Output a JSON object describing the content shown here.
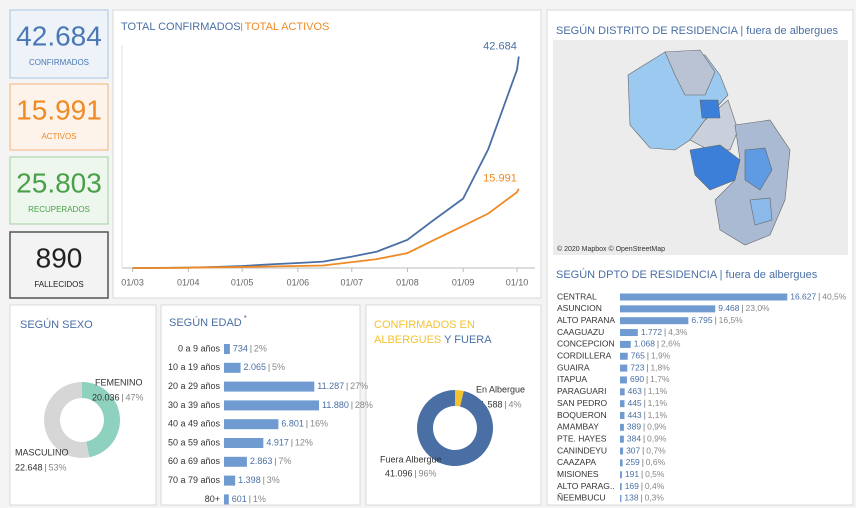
{
  "kpis": [
    {
      "value": "42.684",
      "label": "CONFIRMADOS",
      "color": "#4a78b5",
      "bg": "#eef3fa",
      "border": "#a9c4e4"
    },
    {
      "value": "15.991",
      "label": "ACTIVOS",
      "color": "#f08a24",
      "bg": "#fdf3ea",
      "border": "#f3b57a"
    },
    {
      "value": "25.803",
      "label": "RECUPERADOS",
      "color": "#4aa04a",
      "bg": "#eef7ee",
      "border": "#9fd09f"
    },
    {
      "value": "890",
      "label": "FALLECIDOS",
      "color": "#222222",
      "bg": "#f3f3f3",
      "border": "#555555"
    }
  ],
  "map": {
    "title": "SEGÚN DISTRITO DE RESIDENCIA | fuera de albergues",
    "attribution": "© 2020 Mapbox © OpenStreetMap"
  },
  "chart_data": [
    {
      "type": "line",
      "x": [
        "01/03",
        "15/03",
        "01/04",
        "15/04",
        "01/05",
        "15/05",
        "01/06",
        "15/06",
        "01/07",
        "15/07",
        "01/08",
        "15/08",
        "01/09",
        "15/09",
        "01/10",
        "02/10"
      ],
      "xlim": [
        "23/02",
        "11/10"
      ],
      "xticks": [
        "01/03",
        "01/04",
        "01/05",
        "01/06",
        "01/07",
        "01/08",
        "01/09",
        "01/10"
      ],
      "ylim": [
        0,
        45000
      ],
      "series": [
        {
          "name": "TOTAL CONFIRMADOS",
          "color": "#4a6fa5",
          "values": [
            0,
            11,
            70,
            200,
            400,
            700,
            1000,
            1300,
            2300,
            3300,
            5700,
            9500,
            14000,
            24000,
            40000,
            42684
          ],
          "value_labels": [
            null,
            null,
            null,
            null,
            null,
            null,
            null,
            null,
            null,
            null,
            null,
            null,
            null,
            null,
            null,
            "42.684"
          ]
        },
        {
          "name": "TOTAL ACTIVOS",
          "color": "#f08a24",
          "values": [
            0,
            10,
            60,
            150,
            200,
            300,
            400,
            500,
            1200,
            1800,
            3000,
            5500,
            8500,
            11000,
            15300,
            15991
          ],
          "value_labels": [
            null,
            null,
            null,
            null,
            null,
            null,
            null,
            null,
            null,
            null,
            null,
            null,
            null,
            null,
            null,
            "15.991"
          ]
        }
      ]
    },
    {
      "type": "donut",
      "title": "SEGÚN SEXO",
      "categories": [
        "FEMENINO",
        "MASCULINO"
      ],
      "values": [
        20036,
        22648
      ],
      "value_labels": [
        "20.036",
        "22.648"
      ],
      "percent_labels": [
        "47%",
        "53%"
      ],
      "colors": [
        "#8fd1bf",
        "#d6d6d6"
      ]
    },
    {
      "type": "hbar",
      "title": "SEGÚN EDAD",
      "title_note": "*",
      "categories": [
        "0 a 9 años",
        "10 a 19 años",
        "20 a 29 años",
        "30 a 39 años",
        "40 a 49 años",
        "50 a 59 años",
        "60 a 69 años",
        "70 a 79 años",
        "80+"
      ],
      "values": [
        734,
        2065,
        11287,
        11880,
        6801,
        4917,
        2863,
        1398,
        601
      ],
      "value_labels": [
        "734",
        "2.065",
        "11.287",
        "11.880",
        "6.801",
        "4.917",
        "2.863",
        "1.398",
        "601"
      ],
      "percent_labels": [
        "2%",
        "5%",
        "27%",
        "28%",
        "16%",
        "12%",
        "7%",
        "3%",
        "1%"
      ],
      "xlim": [
        0,
        12500
      ],
      "color": "#6f9bd1"
    },
    {
      "type": "donut",
      "title": [
        "CONFIRMADOS EN ALBERGUES",
        "Y FUERA"
      ],
      "title_colors": [
        "#f2c230",
        "#4a6fa5"
      ],
      "categories": [
        "En Albergue",
        "Fuera Albergue"
      ],
      "values": [
        1588,
        41096
      ],
      "value_labels": [
        "1.588",
        "41.096"
      ],
      "percent_labels": [
        "4%",
        "96%"
      ],
      "colors": [
        "#f2c230",
        "#4a6fa5"
      ]
    },
    {
      "type": "hbar",
      "title": "SEGÚN DPTO DE RESIDENCIA | fuera de albergues",
      "categories": [
        "CENTRAL",
        "ASUNCION",
        "ALTO PARANA",
        "CAAGUAZU",
        "CONCEPCION",
        "CORDILLERA",
        "GUAIRA",
        "ITAPUA",
        "PARAGUARI",
        "SAN PEDRO",
        "BOQUERON",
        "AMAMBAY",
        "PTE. HAYES",
        "CANINDEYU",
        "CAAZAPA",
        "MISIONES",
        "ALTO PARAG..",
        "ÑEEMBUCU"
      ],
      "values": [
        16627,
        9468,
        6795,
        1772,
        1068,
        765,
        723,
        690,
        463,
        445,
        443,
        389,
        384,
        307,
        259,
        191,
        169,
        138
      ],
      "value_labels": [
        "16.627",
        "9.468",
        "6.795",
        "1.772",
        "1.068",
        "765",
        "723",
        "690",
        "463",
        "445",
        "443",
        "389",
        "384",
        "307",
        "259",
        "191",
        "169",
        "138"
      ],
      "percent_labels": [
        "40,5%",
        "23,0%",
        "16,5%",
        "4,3%",
        "2,6%",
        "1,9%",
        "1,8%",
        "1,7%",
        "1,1%",
        "1,1%",
        "1,1%",
        "0,9%",
        "0,9%",
        "0,7%",
        "0,6%",
        "0,5%",
        "0,4%",
        "0,3%"
      ],
      "xlim": [
        0,
        17000
      ],
      "color": "#6f9bd1"
    }
  ]
}
